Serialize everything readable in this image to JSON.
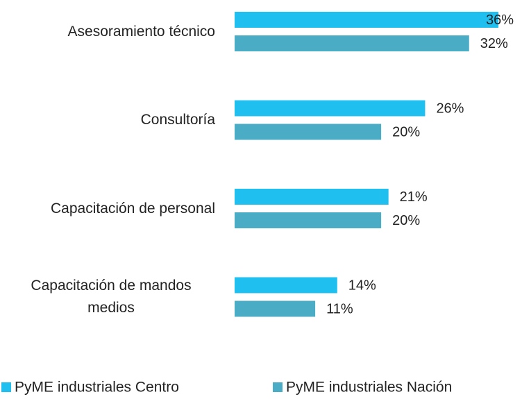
{
  "chart_data": {
    "type": "bar",
    "orientation": "horizontal",
    "categories": [
      "Asesoramiento técnico",
      "Consultoría",
      "Capacitación de personal",
      "Capacitación de mandos medios"
    ],
    "series": [
      {
        "name": "PyME industriales Centro",
        "color": "#1fbff0",
        "values": [
          36,
          26,
          21,
          14
        ],
        "value_labels": [
          "36%",
          "26%",
          "21%",
          "14%"
        ]
      },
      {
        "name": "PyME industriales Nación",
        "color": "#4bacc6",
        "values": [
          32,
          20,
          20,
          11
        ],
        "value_labels": [
          "32%",
          "20%",
          "20%",
          "11%"
        ]
      }
    ],
    "legend": "bottom"
  }
}
